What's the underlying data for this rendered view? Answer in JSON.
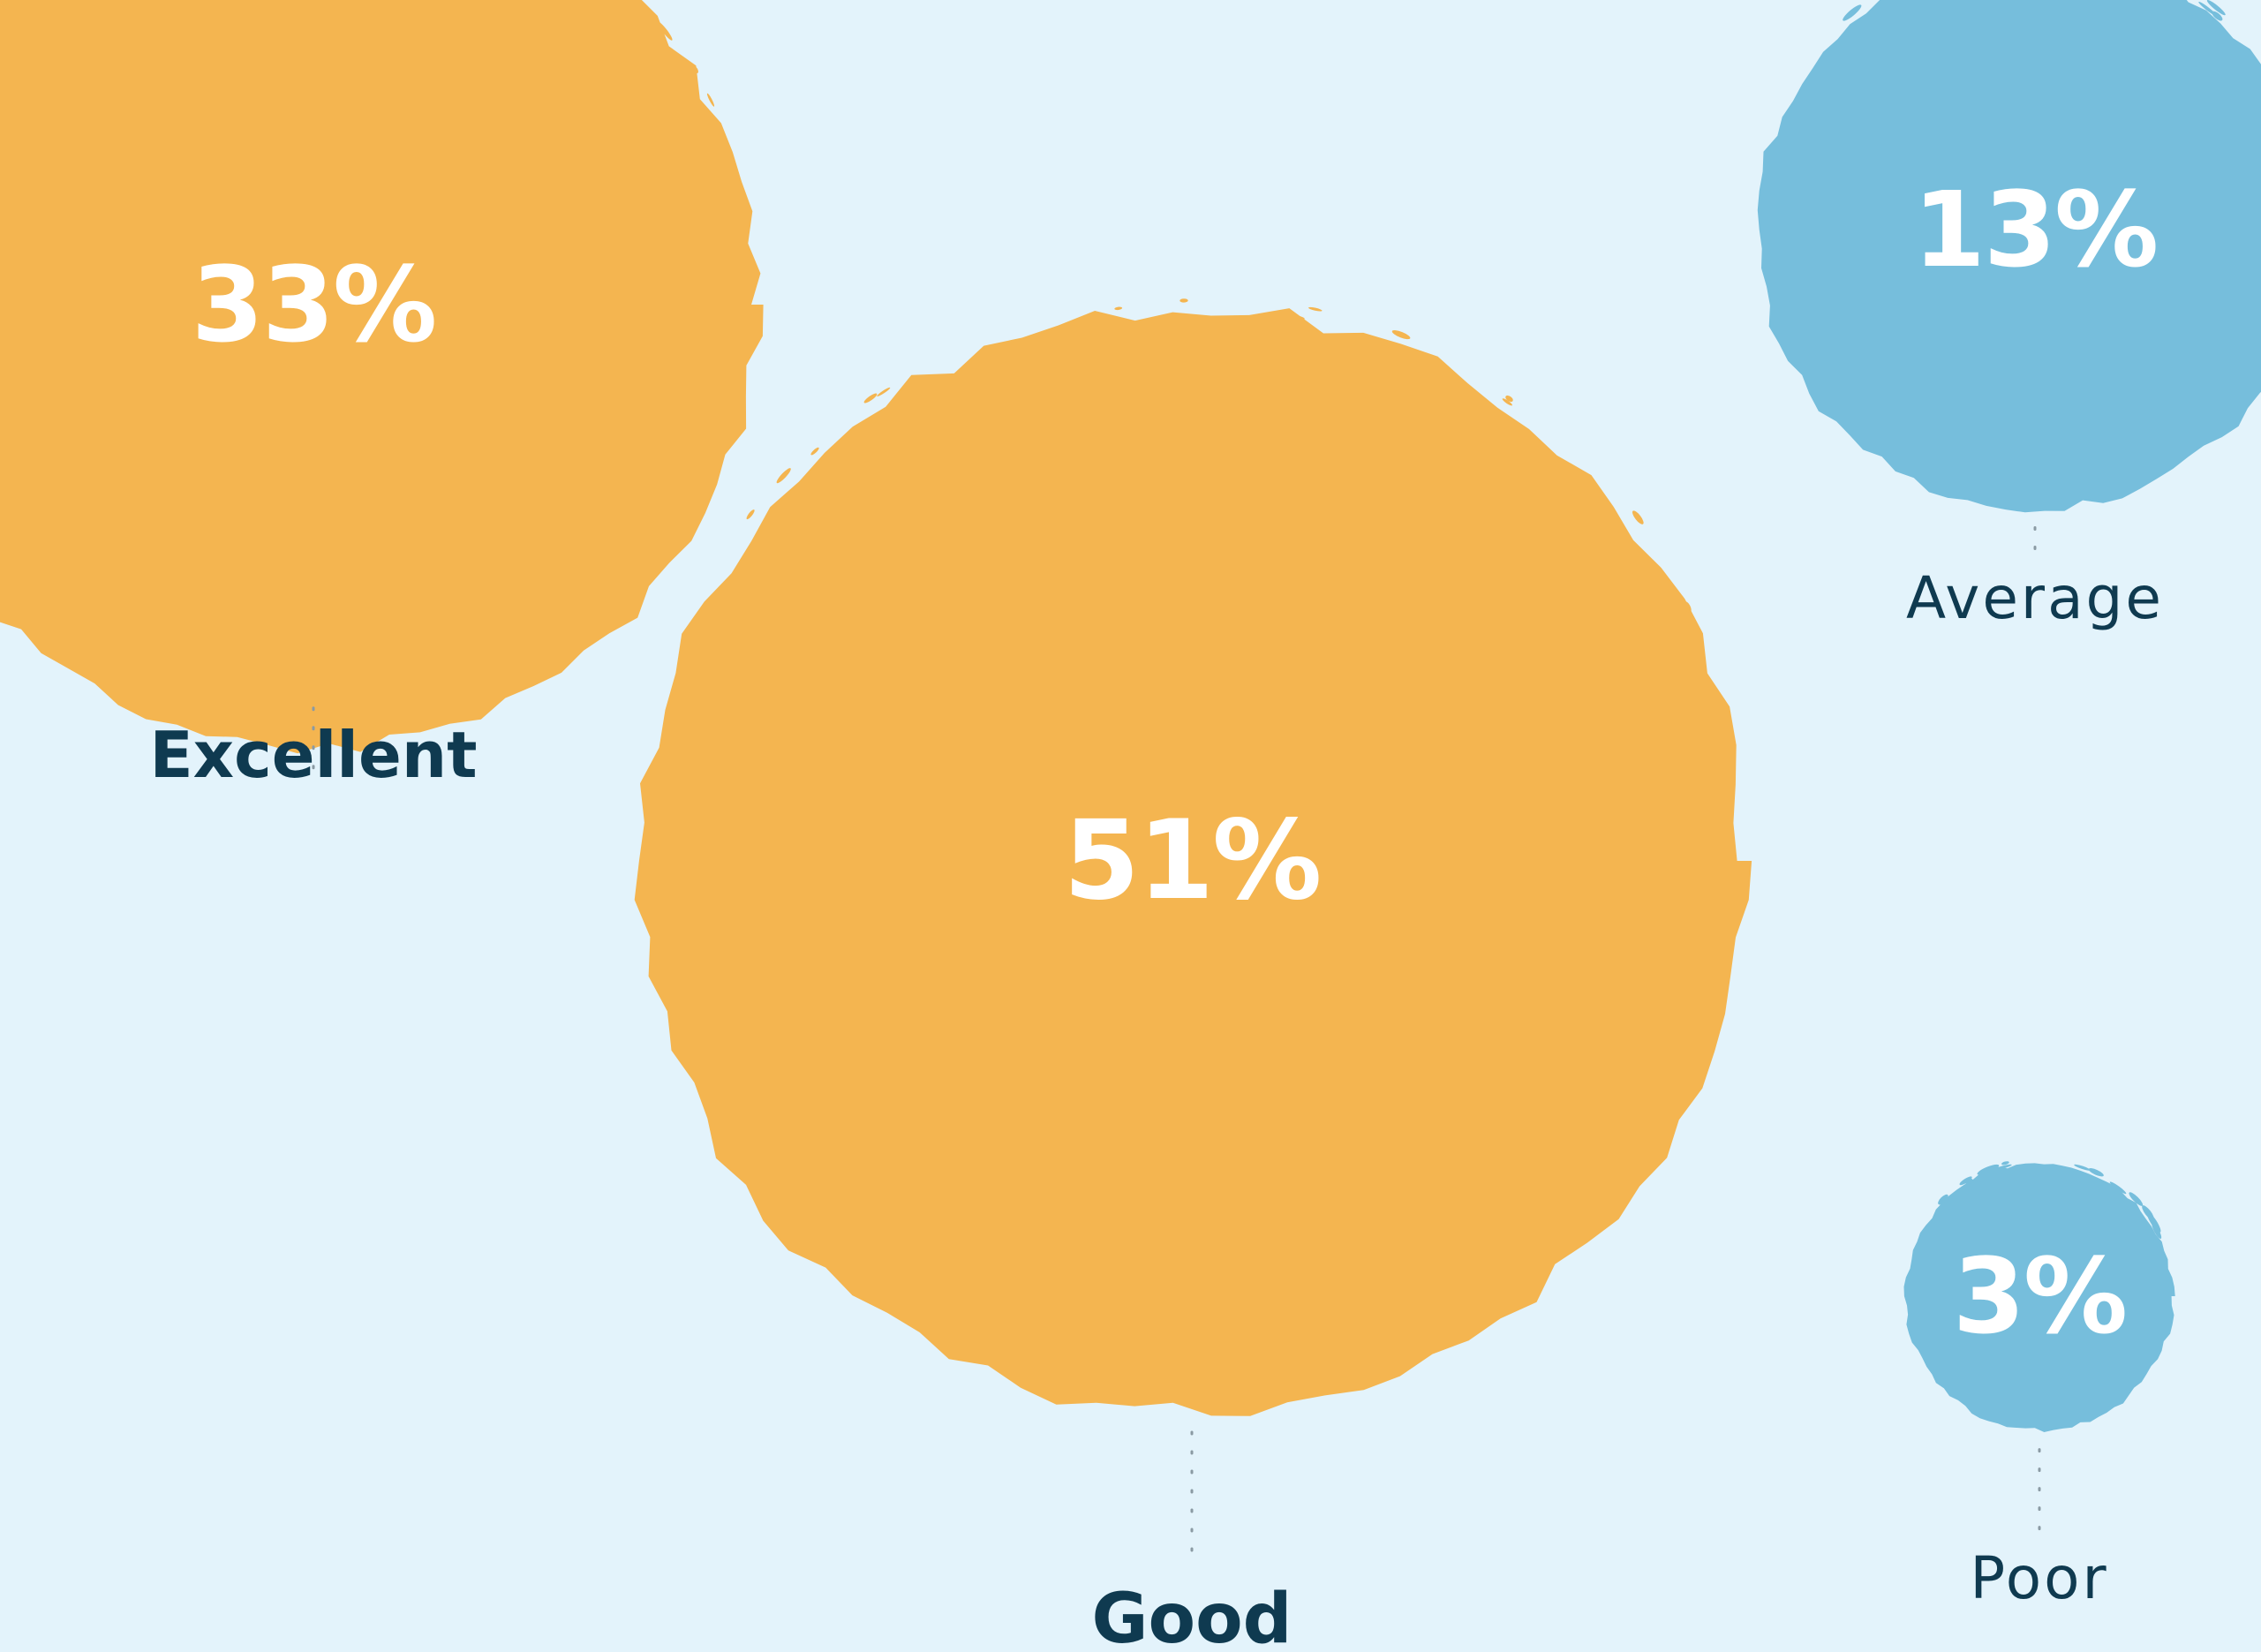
{
  "chart_data": {
    "type": "bubble",
    "title": "",
    "unit": "%",
    "categories": [
      "Excellent",
      "Good",
      "Average",
      "Poor"
    ],
    "values": [
      33,
      51,
      13,
      3
    ],
    "series": [
      {
        "name": "",
        "values": [
          33,
          51,
          13,
          3
        ]
      }
    ],
    "value_labels": [
      "33%",
      "51%",
      "13%",
      "3%"
    ],
    "colors": {
      "Excellent": "#f4b550",
      "Good": "#f4b550",
      "Average": "#76bedc",
      "Poor": "#76bedc",
      "background": "#e3f3fb",
      "label_text": "#0f3a50",
      "value_text": "#ffffff"
    },
    "label_style": {
      "Excellent": "bold",
      "Good": "bold",
      "Average": "light",
      "Poor": "light"
    },
    "legend": "none",
    "grid": false
  }
}
